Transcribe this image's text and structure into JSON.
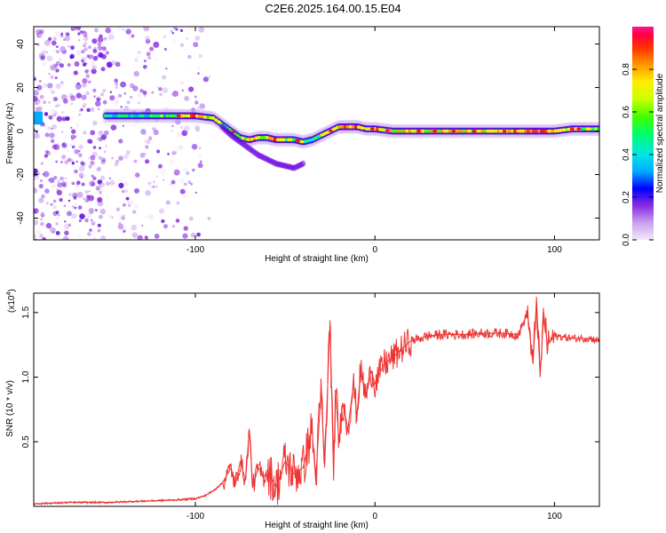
{
  "figure_title": "C2E6.2025.164.00.15.E04",
  "chart_data": [
    {
      "type": "heatmap",
      "title": "",
      "xlabel": "Height of straight line (km)",
      "ylabel": "Frequency (Hz)",
      "xlim": [
        -190,
        125
      ],
      "ylim": [
        -50,
        48
      ],
      "xticks": [
        -100,
        0,
        100
      ],
      "yticks": [
        -40,
        -20,
        0,
        20,
        40
      ],
      "colorbar": {
        "label": "Normalized spectral amplitude",
        "range": [
          0.0,
          1.0
        ],
        "ticks": [
          "0.0",
          "0.2",
          "0.4",
          "0.6",
          "0.8"
        ],
        "tick_values": [
          0.0,
          0.2,
          0.4,
          0.6,
          0.8
        ],
        "colors": [
          "#f4e8fb",
          "#c9a0ef",
          "#8a2be2",
          "#5a00d6",
          "#0000ff",
          "#00aaff",
          "#00e5e5",
          "#00ff66",
          "#44ff00",
          "#ccff00",
          "#ffee00",
          "#ff9900",
          "#ff3300",
          "#ff0040",
          "#ff1493"
        ]
      },
      "main_trace": {
        "description": "dominant frequency ridge vs height",
        "x": [
          -150,
          -130,
          -110,
          -100,
          -90,
          -85,
          -80,
          -75,
          -70,
          -65,
          -60,
          -55,
          -50,
          -45,
          -40,
          -35,
          -30,
          -25,
          -20,
          -15,
          -10,
          -5,
          0,
          10,
          20,
          40,
          60,
          80,
          90,
          100,
          110,
          125
        ],
        "y": [
          7,
          7,
          7,
          7,
          6,
          3,
          0,
          -3,
          -4,
          -3,
          -3,
          -4,
          -4,
          -4,
          -5,
          -4,
          -2,
          0,
          2,
          2,
          2,
          1,
          1,
          0,
          0,
          0,
          0,
          0,
          0,
          0,
          1,
          1
        ],
        "amplitude": [
          0.4,
          0.45,
          0.55,
          0.8,
          0.6,
          0.5,
          0.55,
          0.6,
          0.75,
          0.7,
          0.65,
          0.8,
          0.6,
          0.55,
          0.5,
          0.45,
          0.55,
          0.6,
          0.7,
          0.8,
          0.85,
          0.7,
          0.75,
          0.65,
          0.7,
          0.7,
          0.7,
          0.75,
          0.9,
          0.7,
          0.6,
          0.5
        ]
      },
      "lower_branch": {
        "description": "secondary descending streak",
        "x": [
          -85,
          -80,
          -75,
          -70,
          -65,
          -60,
          -55,
          -50,
          -45,
          -40
        ],
        "y": [
          2,
          -2,
          -5,
          -8,
          -11,
          -13,
          -15,
          -16,
          -17,
          -15
        ],
        "amplitude": [
          0.3,
          0.3,
          0.3,
          0.25,
          0.3,
          0.25,
          0.25,
          0.2,
          0.2,
          0.2
        ]
      },
      "noise_region": {
        "x_range": [
          -190,
          -100
        ],
        "amplitude": 0.15
      }
    },
    {
      "type": "line",
      "title": "",
      "xlabel": "Height of straight line (km)",
      "ylabel": "SNR (10 * v/v)",
      "y_multiplier": "(x10⁴)",
      "y_multiplier_base": "(x10",
      "y_multiplier_exp": "4",
      "y_multiplier_close": ")",
      "xlim": [
        -190,
        125
      ],
      "ylim": [
        0,
        1.65
      ],
      "xticks": [
        -100,
        0,
        100
      ],
      "yticks": [
        0.5,
        1.0,
        1.5
      ],
      "ytick_labels": [
        "0.5",
        "1.0",
        "1.5"
      ],
      "series": [
        {
          "name": "SNR",
          "color": "#ee3333",
          "x": [
            -190,
            -170,
            -150,
            -130,
            -110,
            -100,
            -95,
            -90,
            -85,
            -80,
            -78,
            -75,
            -72,
            -70,
            -68,
            -65,
            -62,
            -60,
            -55,
            -50,
            -45,
            -40,
            -35,
            -33,
            -30,
            -28,
            -25,
            -23,
            -22,
            -20,
            -18,
            -15,
            -12,
            -10,
            -8,
            -5,
            -2,
            0,
            5,
            10,
            15,
            20,
            25,
            30,
            40,
            50,
            60,
            70,
            80,
            85,
            88,
            90,
            92,
            94,
            96,
            100,
            110,
            120,
            125
          ],
          "y": [
            0.02,
            0.03,
            0.03,
            0.04,
            0.05,
            0.06,
            0.08,
            0.12,
            0.18,
            0.3,
            0.15,
            0.35,
            0.2,
            0.6,
            0.15,
            0.3,
            0.22,
            0.28,
            0.15,
            0.35,
            0.25,
            0.3,
            0.6,
            0.2,
            0.9,
            0.3,
            1.44,
            0.2,
            0.9,
            0.5,
            0.8,
            0.6,
            0.95,
            0.7,
            1.05,
            0.85,
            1.05,
            0.95,
            1.1,
            1.15,
            1.22,
            1.28,
            1.3,
            1.32,
            1.33,
            1.33,
            1.34,
            1.34,
            1.33,
            1.5,
            1.1,
            1.6,
            1.0,
            1.5,
            1.25,
            1.32,
            1.3,
            1.3,
            1.28
          ]
        }
      ]
    }
  ]
}
